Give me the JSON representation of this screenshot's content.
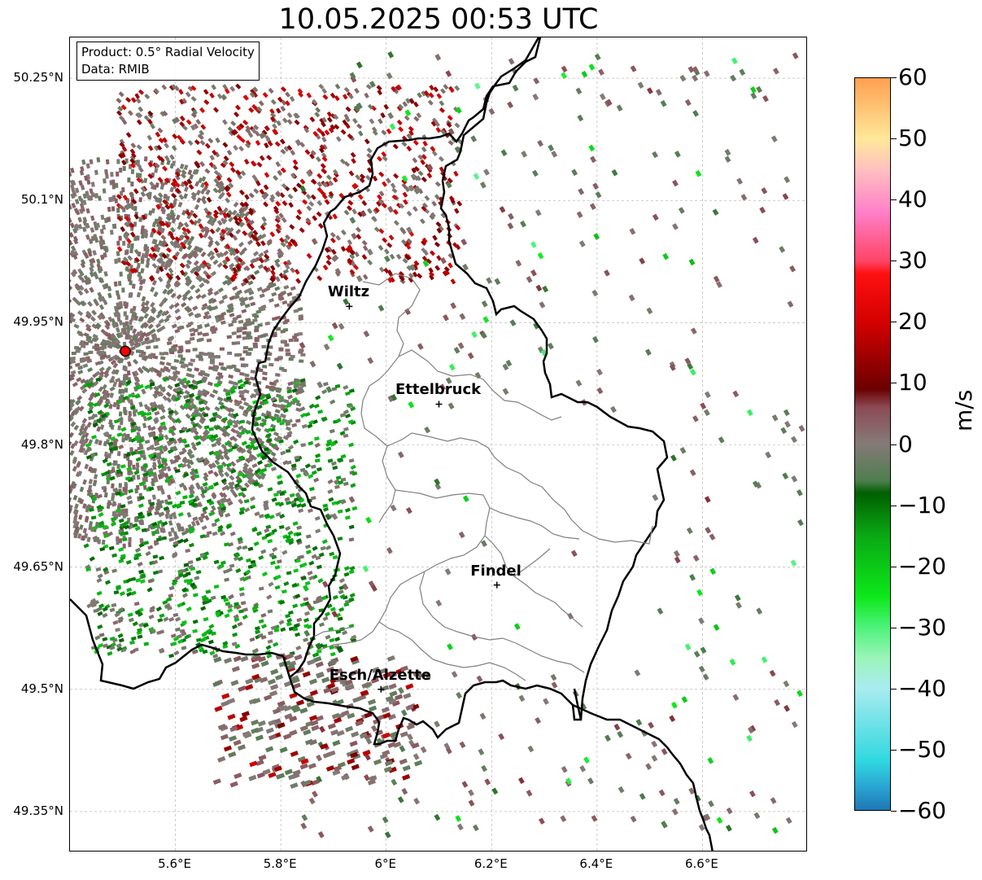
{
  "title": "10.05.2025 00:53 UTC",
  "info": {
    "product_label": "Product: 0.5° Radial Velocity",
    "data_label": "Data: RMIB"
  },
  "axes": {
    "lat_ticks": [
      "50.25°N",
      "50.1°N",
      "49.95°N",
      "49.8°N",
      "49.65°N",
      "49.5°N",
      "49.35°N"
    ],
    "lon_ticks": [
      "5.6°E",
      "5.8°E",
      "6°E",
      "6.2°E",
      "6.4°E",
      "6.6°E"
    ],
    "lon_range": [
      5.4,
      6.8
    ],
    "lat_range": [
      49.3,
      50.3
    ],
    "grid": true
  },
  "cities": [
    {
      "name": "Wiltz",
      "lon": 5.93,
      "lat": 49.97
    },
    {
      "name": "Ettelbruck",
      "lon": 6.1,
      "lat": 49.85
    },
    {
      "name": "Findel",
      "lon": 6.21,
      "lat": 49.628
    },
    {
      "name": "Esch/Alzette",
      "lon": 5.99,
      "lat": 49.5
    }
  ],
  "radar_site": {
    "lon": 5.505,
    "lat": 49.915,
    "color": "#ff0000"
  },
  "colorbar": {
    "unit": "m/s",
    "vmin": -60,
    "vmax": 60,
    "ticks": [
      "60",
      "50",
      "40",
      "30",
      "20",
      "10",
      "0",
      "−10",
      "−20",
      "−30",
      "−40",
      "−50",
      "−60"
    ],
    "stops": [
      {
        "v": -60,
        "color": "#1f77b4"
      },
      {
        "v": -56,
        "color": "#2aa8d4"
      },
      {
        "v": -52,
        "color": "#2fd8df"
      },
      {
        "v": -40,
        "color": "#a9ecef"
      },
      {
        "v": -35,
        "color": "#9af5b8"
      },
      {
        "v": -30,
        "color": "#4cf27a"
      },
      {
        "v": -25,
        "color": "#0ce81a"
      },
      {
        "v": -15,
        "color": "#0aa814"
      },
      {
        "v": -8,
        "color": "#005f00"
      },
      {
        "v": -6,
        "color": "#4e7e4e"
      },
      {
        "v": 0,
        "color": "#857a78"
      },
      {
        "v": 6,
        "color": "#8c4b55"
      },
      {
        "v": 9,
        "color": "#6b0000"
      },
      {
        "v": 20,
        "color": "#d40000"
      },
      {
        "v": 28,
        "color": "#ff1010"
      },
      {
        "v": 30,
        "color": "#ff4466"
      },
      {
        "v": 38,
        "color": "#ff80c8"
      },
      {
        "v": 45,
        "color": "#ffc0c0"
      },
      {
        "v": 50,
        "color": "#ffe89a"
      },
      {
        "v": 60,
        "color": "#ffa050"
      }
    ]
  }
}
